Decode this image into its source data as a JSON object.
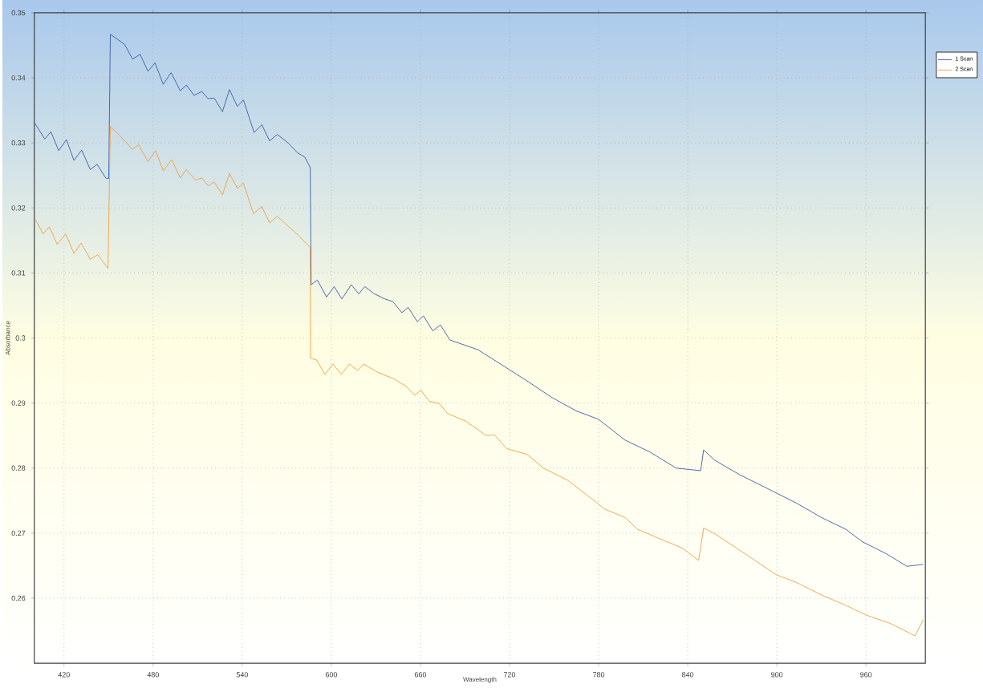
{
  "chart_data": {
    "type": "line",
    "xlabel": "Wavelength",
    "ylabel": "Absorbance",
    "xlim": [
      400,
      1000
    ],
    "ylim": [
      0.25,
      0.35
    ],
    "xticks": [
      420,
      480,
      540,
      600,
      660,
      720,
      780,
      840,
      900,
      960
    ],
    "yticks": [
      0.26,
      0.27,
      0.28,
      0.29,
      0.3,
      0.31,
      0.32,
      0.33,
      0.34,
      0.35
    ],
    "grid": true,
    "legend": "top right",
    "marker": "none",
    "line_style": "solid",
    "series": [
      {
        "name": "1 Scan",
        "color": "#3a5ca8",
        "x": [
          400.4,
          407,
          411.2,
          416.4,
          421.6,
          426.7,
          431.9,
          437.7,
          442.3,
          448.1,
          450.1,
          451.2,
          456.8,
          460.9,
          466.1,
          471.3,
          476.5,
          481.3,
          486.8,
          492.1,
          498.3,
          502.4,
          507.6,
          512.8,
          517,
          521.1,
          526.7,
          531.4,
          536.7,
          540.8,
          548,
          553.2,
          558.4,
          563.6,
          570.9,
          577.1,
          582.2,
          585.8,
          586.4,
          590.6,
          596.8,
          601.9,
          607.1,
          613.4,
          618.5,
          622.6,
          628.9,
          636.1,
          641.4,
          647.5,
          651.8,
          657.9,
          662,
          668.3,
          673.5,
          679.8,
          698.7,
          720.8,
          731.8,
          748.2,
          764.8,
          779.9,
          797.8,
          814.3,
          832.2,
          848.7,
          850.7,
          858.2,
          874.8,
          896.8,
          913.3,
          930,
          946.4,
          957.4,
          973.9,
          987.6,
          998.6
        ],
        "values": [
          0.333,
          0.3306,
          0.3317,
          0.3288,
          0.3305,
          0.3273,
          0.3289,
          0.3259,
          0.3267,
          0.3246,
          0.3245,
          0.3467,
          0.3458,
          0.3451,
          0.3429,
          0.3436,
          0.341,
          0.3423,
          0.339,
          0.3408,
          0.338,
          0.3389,
          0.3373,
          0.3379,
          0.3368,
          0.3369,
          0.3348,
          0.3382,
          0.3356,
          0.3366,
          0.3316,
          0.3328,
          0.3303,
          0.3313,
          0.33,
          0.3285,
          0.3278,
          0.3262,
          0.3082,
          0.3089,
          0.3063,
          0.3079,
          0.306,
          0.3082,
          0.3068,
          0.3079,
          0.3068,
          0.306,
          0.3056,
          0.3039,
          0.3047,
          0.3025,
          0.3034,
          0.3011,
          0.302,
          0.2997,
          0.2982,
          0.295,
          0.2934,
          0.2909,
          0.2888,
          0.2875,
          0.2843,
          0.2825,
          0.28,
          0.2796,
          0.2828,
          0.2812,
          0.279,
          0.2765,
          0.2746,
          0.2724,
          0.2706,
          0.2687,
          0.2668,
          0.2649,
          0.2652
        ]
      },
      {
        "name": "2 Scan",
        "color": "#f0a040",
        "x": [
          400.8,
          405.9,
          410.1,
          415.4,
          421.1,
          426.7,
          431.5,
          437.7,
          442.7,
          449.6,
          451.2,
          456.8,
          466.1,
          470.3,
          476.5,
          481.7,
          486.8,
          492.5,
          498.3,
          502.4,
          508.6,
          512.8,
          517,
          521.1,
          526.7,
          531.4,
          536.7,
          540.8,
          547.6,
          553.2,
          558.4,
          563.6,
          570.9,
          578.1,
          585.8,
          586,
          590.2,
          595.7,
          601.1,
          606.7,
          612.2,
          617.7,
          621.8,
          631.4,
          642.4,
          650.7,
          656.2,
          660.3,
          665.8,
          672.7,
          678.2,
          690.6,
          704.3,
          709.8,
          718.1,
          731.8,
          742.8,
          759.3,
          775.8,
          784,
          797.8,
          806.1,
          822.6,
          836.3,
          847.3,
          850.7,
          858.2,
          874.8,
          899.6,
          913.3,
          930,
          946.4,
          960.1,
          976.6,
          993,
          998.6
        ],
        "values": [
          0.3182,
          0.316,
          0.3171,
          0.3144,
          0.316,
          0.313,
          0.3146,
          0.3121,
          0.3128,
          0.3107,
          0.3325,
          0.3313,
          0.329,
          0.3297,
          0.3271,
          0.3288,
          0.3257,
          0.3274,
          0.3246,
          0.3259,
          0.3243,
          0.3246,
          0.3234,
          0.324,
          0.322,
          0.3253,
          0.323,
          0.3238,
          0.3191,
          0.3202,
          0.3177,
          0.3187,
          0.3172,
          0.3157,
          0.3139,
          0.2969,
          0.2966,
          0.2944,
          0.296,
          0.2944,
          0.296,
          0.295,
          0.296,
          0.2947,
          0.2937,
          0.2925,
          0.2912,
          0.292,
          0.2903,
          0.2899,
          0.2884,
          0.2872,
          0.285,
          0.2851,
          0.283,
          0.2821,
          0.28,
          0.2781,
          0.2752,
          0.2737,
          0.2724,
          0.2706,
          0.269,
          0.2677,
          0.2658,
          0.2708,
          0.2699,
          0.2674,
          0.2636,
          0.2624,
          0.2605,
          0.2589,
          0.2574,
          0.2561,
          0.2542,
          0.2567
        ]
      }
    ]
  }
}
